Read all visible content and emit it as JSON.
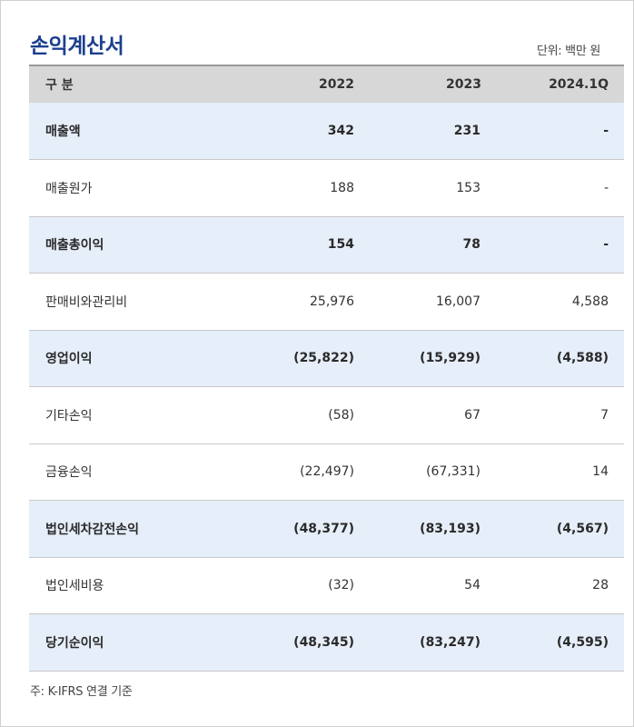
{
  "title": "손익계산서",
  "unit": "단위: 백만 원",
  "table": {
    "headers": [
      "구 분",
      "2022",
      "2023",
      "2024.1Q"
    ],
    "rows": [
      {
        "label": "매출액",
        "v2022": "342",
        "v2023": "231",
        "v2024": "-",
        "highlight": true
      },
      {
        "label": "매출원가",
        "v2022": "188",
        "v2023": "153",
        "v2024": "-",
        "highlight": false
      },
      {
        "label": "매출총이익",
        "v2022": "154",
        "v2023": "78",
        "v2024": "-",
        "highlight": true
      },
      {
        "label": "판매비와관리비",
        "v2022": "25,976",
        "v2023": "16,007",
        "v2024": "4,588",
        "highlight": false
      },
      {
        "label": "영업이익",
        "v2022": "(25,822)",
        "v2023": "(15,929)",
        "v2024": "(4,588)",
        "highlight": true
      },
      {
        "label": "기타손익",
        "v2022": "(58)",
        "v2023": "67",
        "v2024": "7",
        "highlight": false
      },
      {
        "label": "금융손익",
        "v2022": "(22,497)",
        "v2023": "(67,331)",
        "v2024": "14",
        "highlight": false
      },
      {
        "label": "법인세차감전손익",
        "v2022": "(48,377)",
        "v2023": "(83,193)",
        "v2024": "(4,567)",
        "highlight": true
      },
      {
        "label": "법인세비용",
        "v2022": "(32)",
        "v2023": "54",
        "v2024": "28",
        "highlight": false
      },
      {
        "label": "당기순이익",
        "v2022": "(48,345)",
        "v2023": "(83,247)",
        "v2024": "(4,595)",
        "highlight": true
      }
    ]
  },
  "note": "주: K-IFRS 연결 기준",
  "colors": {
    "title": "#1b3f8f",
    "header_bg": "#d7d7d7",
    "highlight_bg": "#e6eef9"
  }
}
